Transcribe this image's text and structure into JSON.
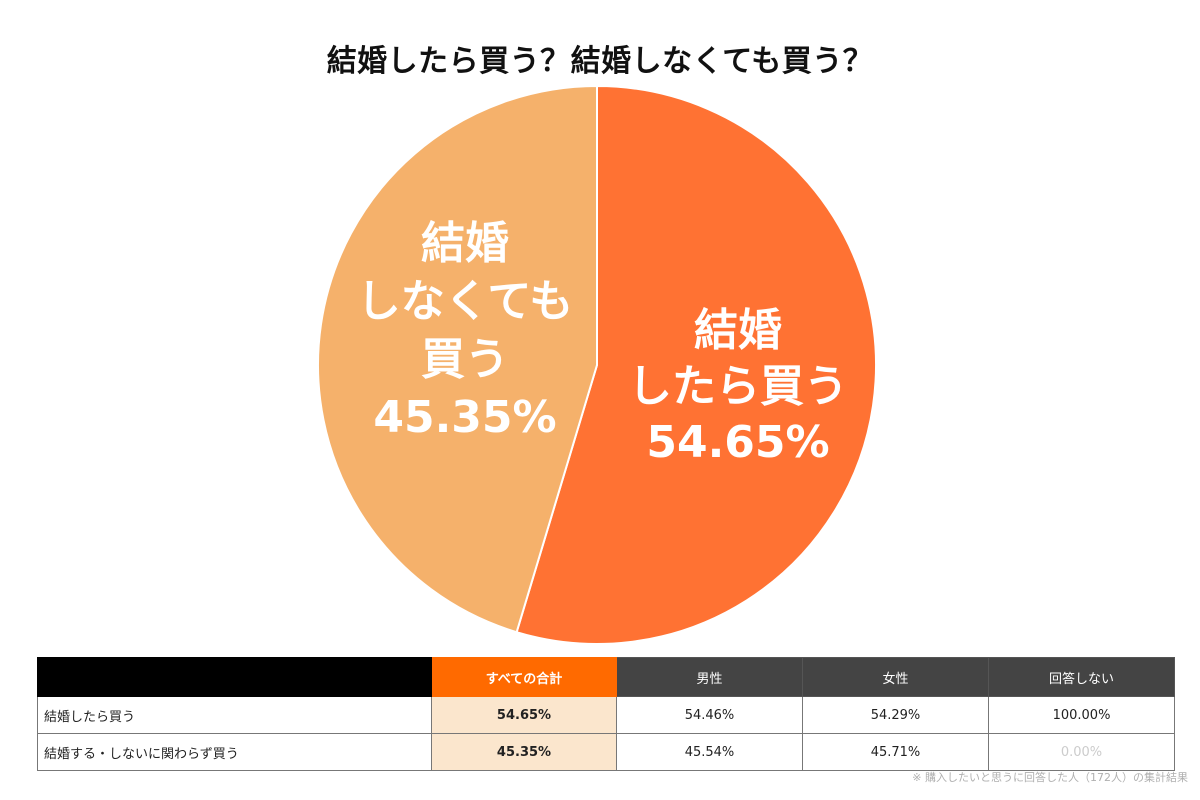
{
  "chart_data": {
    "type": "pie",
    "title": "結婚したら買う？結婚しなくても買う？",
    "slices": [
      {
        "label_lines": [
          "結婚",
          "したら買う"
        ],
        "value_label": "54.65%",
        "value": 54.65,
        "color": "#ff7233"
      },
      {
        "label_lines": [
          "結婚",
          "しなくても",
          "買う"
        ],
        "value_label": "45.35%",
        "value": 45.35,
        "color": "#f5b16b"
      }
    ]
  },
  "table": {
    "headers": [
      "すべての合計",
      "男性",
      "女性",
      "回答しない"
    ],
    "rows": [
      {
        "label": "結婚したら買う",
        "total": "54.65%",
        "male": "54.46%",
        "female": "54.29%",
        "no_answer": "100.00%"
      },
      {
        "label": "結婚する・しないに関わらず買う",
        "total": "45.35%",
        "male": "45.54%",
        "female": "45.71%",
        "no_answer": "0.00%"
      }
    ],
    "colors": {
      "total_header": "#ff6a00",
      "total_cell": "#fbe6cd",
      "header": "#444444"
    }
  },
  "footnote": "※ 購入したいと思うに回答した人（172人）の集計結果"
}
